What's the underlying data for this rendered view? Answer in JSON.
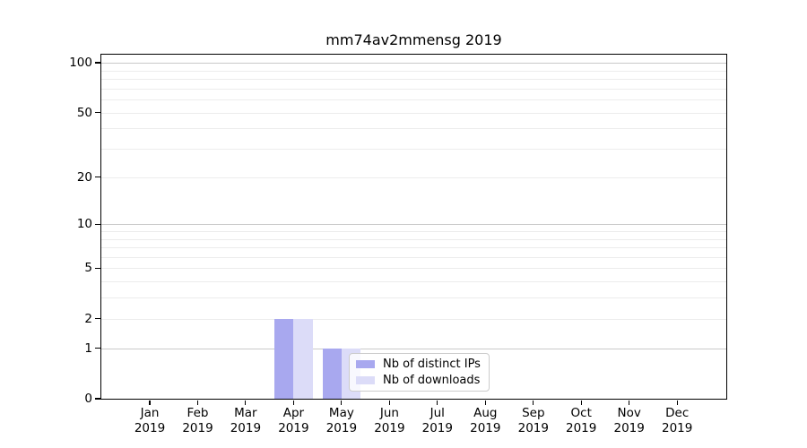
{
  "chart_data": {
    "type": "bar",
    "title": "mm74av2mmensg 2019",
    "x_tick_months": [
      "Jan",
      "Feb",
      "Mar",
      "Apr",
      "May",
      "Jun",
      "Jul",
      "Aug",
      "Sep",
      "Oct",
      "Nov",
      "Dec"
    ],
    "x_tick_year": "2019",
    "series": [
      {
        "name": "Nb of distinct IPs",
        "color": "#a8a8ef",
        "values": [
          0,
          0,
          0,
          2,
          1,
          0,
          0,
          0,
          0,
          0,
          0,
          0
        ]
      },
      {
        "name": "Nb of downloads",
        "color": "#dcdcf8",
        "values": [
          0,
          0,
          0,
          2,
          1,
          0,
          0,
          0,
          0,
          0,
          0,
          0
        ]
      }
    ],
    "yticks": [
      0,
      1,
      2,
      5,
      10,
      20,
      50,
      100
    ],
    "ylim": [
      0,
      112
    ],
    "yscale": "log1p",
    "grid": "horizontal, minor and major",
    "legend": {
      "entries": [
        "Nb of distinct IPs",
        "Nb of downloads"
      ],
      "position": "lower center of plot"
    },
    "style": {
      "grid_major_color": "#c9c9c9",
      "grid_minor_color": "#ececec",
      "axis_color": "#000000",
      "background": "#ffffff"
    }
  }
}
